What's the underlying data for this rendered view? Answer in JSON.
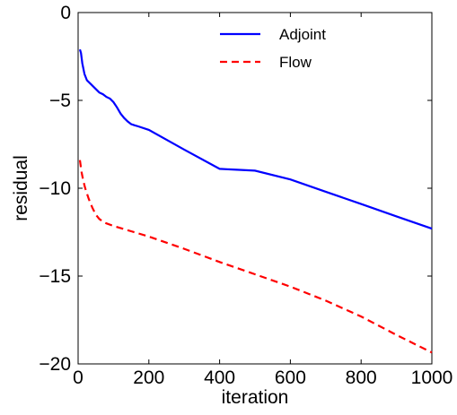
{
  "chart_data": {
    "type": "line",
    "title": "",
    "xlabel": "iteration",
    "ylabel": "residual",
    "xlim": [
      0,
      1000
    ],
    "ylim": [
      -20,
      0
    ],
    "xticks": [
      0,
      200,
      400,
      600,
      800,
      1000
    ],
    "yticks": [
      0,
      -5,
      -10,
      -15,
      -20
    ],
    "xtick_labels": [
      "0",
      "200",
      "400",
      "600",
      "800",
      "1000"
    ],
    "ytick_labels": [
      "0",
      "−5",
      "−10",
      "−15",
      "−20"
    ],
    "grid": false,
    "legend_position": "top-right",
    "series": [
      {
        "name": "Adjoint",
        "color": "#0000ff",
        "style": "solid",
        "x": [
          5,
          8,
          12,
          18,
          25,
          35,
          50,
          60,
          70,
          80,
          90,
          100,
          110,
          120,
          130,
          140,
          150,
          160,
          170,
          200,
          300,
          400,
          500,
          600,
          700,
          800,
          900,
          1000
        ],
        "y": [
          -2.1,
          -2.3,
          -2.9,
          -3.5,
          -3.85,
          -4.05,
          -4.35,
          -4.55,
          -4.65,
          -4.8,
          -4.9,
          -5.1,
          -5.4,
          -5.75,
          -6.0,
          -6.2,
          -6.35,
          -6.42,
          -6.48,
          -6.68,
          -7.8,
          -8.9,
          -9.0,
          -9.5,
          -10.2,
          -10.9,
          -11.6,
          -12.3
        ]
      },
      {
        "name": "Flow",
        "color": "#ff0000",
        "style": "dashed",
        "x": [
          5,
          10,
          15,
          20,
          30,
          40,
          50,
          60,
          70,
          80,
          100,
          150,
          200,
          300,
          400,
          500,
          600,
          700,
          800,
          900,
          1000
        ],
        "y": [
          -8.4,
          -9.1,
          -9.6,
          -10.0,
          -10.6,
          -11.1,
          -11.5,
          -11.75,
          -11.9,
          -12.0,
          -12.15,
          -12.45,
          -12.75,
          -13.45,
          -14.2,
          -14.9,
          -15.6,
          -16.4,
          -17.3,
          -18.35,
          -19.35
        ]
      }
    ]
  }
}
